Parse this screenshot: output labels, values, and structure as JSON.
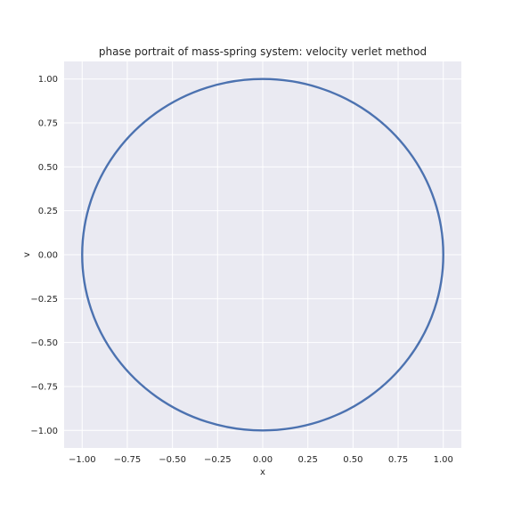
{
  "chart_data": {
    "type": "line",
    "title": "phase portrait of mass-spring system: velocity verlet method",
    "xlabel": "x",
    "ylabel": "v",
    "xlim": [
      -1.1,
      1.1
    ],
    "ylim": [
      -1.1,
      1.1
    ],
    "xticks": [
      -1.0,
      -0.75,
      -0.5,
      -0.25,
      0.0,
      0.25,
      0.5,
      0.75,
      1.0
    ],
    "yticks": [
      -1.0,
      -0.75,
      -0.5,
      -0.25,
      0.0,
      0.25,
      0.5,
      0.75,
      1.0
    ],
    "xtick_labels": [
      "−1.00",
      "−0.75",
      "−0.50",
      "−0.25",
      "0.00",
      "0.25",
      "0.50",
      "0.75",
      "1.00"
    ],
    "ytick_labels": [
      "−1.00",
      "−0.75",
      "−0.50",
      "−0.25",
      "0.00",
      "0.25",
      "0.50",
      "0.75",
      "1.00"
    ],
    "grid": true,
    "series": [
      {
        "color": "#4c72b0",
        "x": [
          1.0,
          0.9511,
          0.809,
          0.5878,
          0.309,
          0.0,
          -0.309,
          -0.5878,
          -0.809,
          -0.9511,
          -1.0,
          -0.9511,
          -0.809,
          -0.5878,
          -0.309,
          0.0,
          0.309,
          0.5878,
          0.809,
          0.9511,
          1.0
        ],
        "y": [
          0.0,
          0.309,
          0.5878,
          0.809,
          0.9511,
          1.0,
          0.9511,
          0.809,
          0.5878,
          0.309,
          0.0,
          -0.309,
          -0.5878,
          -0.809,
          -0.9511,
          -1.0,
          -0.9511,
          -0.809,
          -0.5878,
          -0.309,
          0.0
        ]
      }
    ]
  },
  "style": {
    "plot_background": "#eaeaf2",
    "grid_color": "#ffffff",
    "line_color": "#4c72b0"
  }
}
